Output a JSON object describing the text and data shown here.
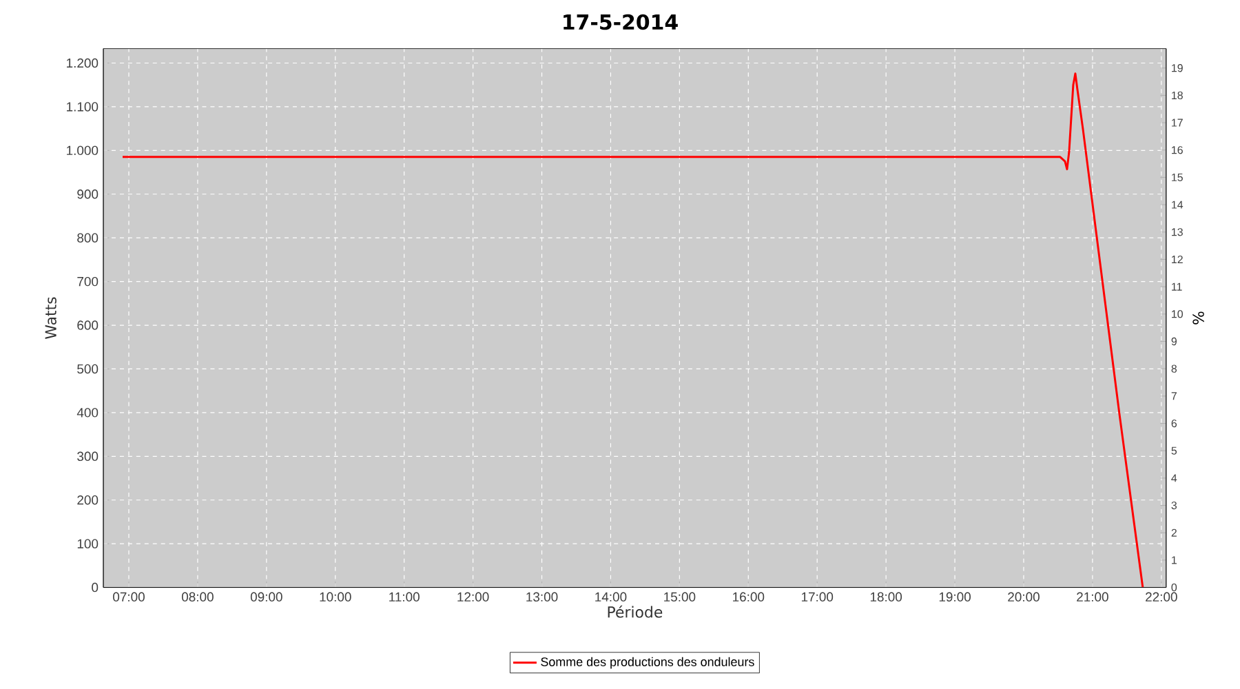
{
  "chart_data": {
    "type": "line",
    "title": "17-5-2014",
    "xlabel": "Période",
    "ylabel": "Watts",
    "y2label": "%",
    "x": [
      6.91,
      20.53,
      20.6,
      20.63,
      20.66,
      20.72,
      20.75,
      20.78,
      20.86,
      21.39,
      21.73
    ],
    "series": [
      {
        "name": "Somme des productions des onduleurs",
        "color": "#ff0000",
        "values": [
          985,
          985,
          975,
          957,
          997,
          1150,
          1176,
          1140,
          1050,
          398,
          0
        ]
      }
    ],
    "xlim": [
      6.63,
      22.07
    ],
    "ylim": [
      0,
      1233
    ],
    "y2lim": [
      0,
      19.71
    ],
    "xticks": [
      {
        "value": 7,
        "label": "07:00"
      },
      {
        "value": 8,
        "label": "08:00"
      },
      {
        "value": 9,
        "label": "09:00"
      },
      {
        "value": 10,
        "label": "10:00"
      },
      {
        "value": 11,
        "label": "11:00"
      },
      {
        "value": 12,
        "label": "12:00"
      },
      {
        "value": 13,
        "label": "13:00"
      },
      {
        "value": 14,
        "label": "14:00"
      },
      {
        "value": 15,
        "label": "15:00"
      },
      {
        "value": 16,
        "label": "16:00"
      },
      {
        "value": 17,
        "label": "17:00"
      },
      {
        "value": 18,
        "label": "18:00"
      },
      {
        "value": 19,
        "label": "19:00"
      },
      {
        "value": 20,
        "label": "20:00"
      },
      {
        "value": 21,
        "label": "21:00"
      },
      {
        "value": 22,
        "label": "22:00"
      }
    ],
    "yticks": [
      0,
      100,
      200,
      300,
      400,
      500,
      600,
      700,
      800,
      900,
      {
        "value": 1000,
        "label": "1.000"
      },
      {
        "value": 1100,
        "label": "1.100"
      },
      {
        "value": 1200,
        "label": "1.200"
      }
    ],
    "y2ticks": [
      0,
      1,
      2,
      3,
      4,
      5,
      6,
      7,
      8,
      9,
      10,
      11,
      12,
      13,
      14,
      15,
      16,
      17,
      18,
      19
    ],
    "grid": true,
    "legend": "bottom"
  }
}
